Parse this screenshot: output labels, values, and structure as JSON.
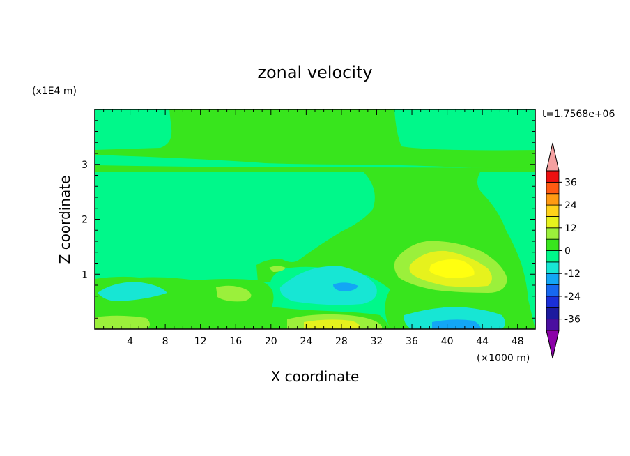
{
  "chart_data": {
    "type": "heatmap",
    "title": "zonal velocity",
    "time_label": "t=1.7568e+06",
    "xlabel": "X coordinate",
    "ylabel": "Z coordinate",
    "x_unit_label": "(×1000 m)",
    "y_unit_label": "(x1E4 m)",
    "xlim": [
      0,
      50
    ],
    "ylim": [
      0,
      4
    ],
    "x_ticks": [
      "4",
      "8",
      "12",
      "16",
      "20",
      "24",
      "28",
      "32",
      "36",
      "40",
      "44",
      "48"
    ],
    "y_ticks": [
      "1",
      "2",
      "3"
    ],
    "colorbar": {
      "levels": [
        -42,
        -36,
        -30,
        -24,
        -18,
        -12,
        -6,
        0,
        6,
        12,
        18,
        24,
        30,
        36,
        42
      ],
      "tick_labels": [
        "36",
        "24",
        "12",
        "0",
        "-12",
        "-24",
        "-36"
      ],
      "colors": [
        "#8b00a8",
        "#4a0fa0",
        "#1c1a9e",
        "#1a2fd8",
        "#1668f0",
        "#13a6f5",
        "#17e6d4",
        "#00f88a",
        "#38e51d",
        "#9bf03b",
        "#e6f21d",
        "#ffd21a",
        "#ff9a12",
        "#ff5a12",
        "#ee1010",
        "#f4a0a0"
      ]
    },
    "fields": {
      "background": 0,
      "regions": [
        {
          "name": "upper-positive-band",
          "value": 3
        },
        {
          "name": "upper-thin-band",
          "value": 3
        },
        {
          "name": "mid-right-positive",
          "value": 3
        },
        {
          "name": "jet-core-outer",
          "value": 9
        },
        {
          "name": "jet-core",
          "value": 15
        },
        {
          "name": "jet-core-inner",
          "value": 21
        },
        {
          "name": "low-level-positive",
          "value": 3
        },
        {
          "name": "low-level-yellow",
          "value": 15
        },
        {
          "name": "low-level-negative",
          "value": -9
        }
      ]
    }
  }
}
